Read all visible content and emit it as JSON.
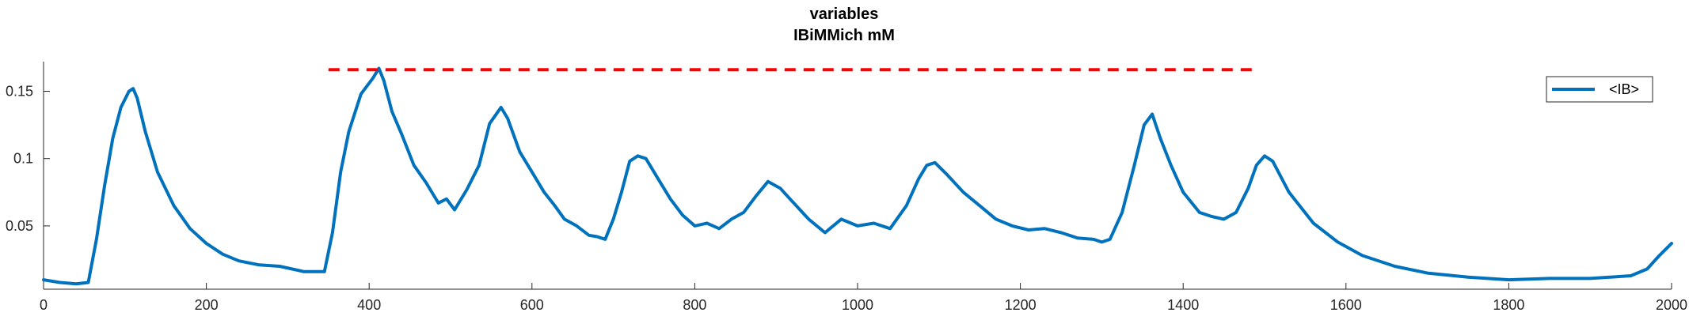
{
  "chart_data": {
    "type": "line",
    "title": "variables",
    "subtitle": "IBiMMich mM",
    "xlabel": "",
    "ylabel": "",
    "xlim": [
      0,
      2000
    ],
    "ylim": [
      0.003,
      0.172
    ],
    "x_ticks": [
      0,
      200,
      400,
      600,
      800,
      1000,
      1200,
      1400,
      1600,
      1800,
      2000
    ],
    "x_tick_labels": [
      "0",
      "200",
      "400",
      "600",
      "800",
      "1000",
      "1200",
      "1400",
      "1600",
      "1800",
      "2000"
    ],
    "y_ticks": [
      0.05,
      0.1,
      0.15
    ],
    "y_tick_labels": [
      "0.05",
      "0.1",
      "0.15"
    ],
    "grid": false,
    "legend_placement": "top-right",
    "series": [
      {
        "name": "<IB>",
        "color": "#0072BD",
        "x": [
          0,
          20,
          40,
          55,
          65,
          75,
          85,
          95,
          105,
          110,
          115,
          125,
          140,
          160,
          180,
          200,
          220,
          240,
          265,
          290,
          320,
          345,
          355,
          365,
          375,
          390,
          405,
          412,
          418,
          428,
          440,
          455,
          470,
          485,
          495,
          505,
          520,
          535,
          548,
          555,
          562,
          570,
          585,
          600,
          615,
          628,
          640,
          655,
          670,
          680,
          690,
          700,
          710,
          720,
          730,
          740,
          755,
          770,
          785,
          800,
          815,
          830,
          845,
          860,
          875,
          890,
          905,
          920,
          940,
          960,
          980,
          1000,
          1020,
          1040,
          1060,
          1075,
          1085,
          1095,
          1110,
          1130,
          1150,
          1170,
          1190,
          1210,
          1230,
          1250,
          1270,
          1290,
          1300,
          1310,
          1325,
          1340,
          1352,
          1362,
          1372,
          1385,
          1400,
          1420,
          1435,
          1450,
          1465,
          1480,
          1490,
          1500,
          1510,
          1530,
          1560,
          1590,
          1620,
          1660,
          1700,
          1750,
          1800,
          1850,
          1900,
          1950,
          1970,
          1985,
          2000
        ],
        "values": [
          0.01,
          0.008,
          0.007,
          0.008,
          0.04,
          0.08,
          0.115,
          0.138,
          0.15,
          0.152,
          0.145,
          0.12,
          0.09,
          0.065,
          0.048,
          0.037,
          0.029,
          0.024,
          0.021,
          0.02,
          0.016,
          0.016,
          0.045,
          0.09,
          0.12,
          0.148,
          0.16,
          0.167,
          0.158,
          0.135,
          0.118,
          0.095,
          0.082,
          0.067,
          0.07,
          0.062,
          0.077,
          0.095,
          0.126,
          0.132,
          0.138,
          0.13,
          0.105,
          0.09,
          0.075,
          0.065,
          0.055,
          0.05,
          0.043,
          0.042,
          0.04,
          0.055,
          0.075,
          0.098,
          0.102,
          0.1,
          0.085,
          0.07,
          0.058,
          0.05,
          0.052,
          0.048,
          0.055,
          0.06,
          0.072,
          0.083,
          0.078,
          0.068,
          0.055,
          0.045,
          0.055,
          0.05,
          0.052,
          0.048,
          0.065,
          0.085,
          0.095,
          0.097,
          0.088,
          0.075,
          0.065,
          0.055,
          0.05,
          0.047,
          0.048,
          0.045,
          0.041,
          0.04,
          0.038,
          0.04,
          0.06,
          0.095,
          0.125,
          0.133,
          0.115,
          0.095,
          0.075,
          0.06,
          0.057,
          0.055,
          0.06,
          0.078,
          0.095,
          0.102,
          0.098,
          0.075,
          0.052,
          0.038,
          0.028,
          0.02,
          0.015,
          0.012,
          0.01,
          0.011,
          0.011,
          0.013,
          0.018,
          0.028,
          0.037
        ]
      },
      {
        "name": "",
        "color": "#FF0000",
        "style": "dashed",
        "x": [
          350,
          1490
        ],
        "values": [
          0.166,
          0.166
        ]
      }
    ]
  }
}
